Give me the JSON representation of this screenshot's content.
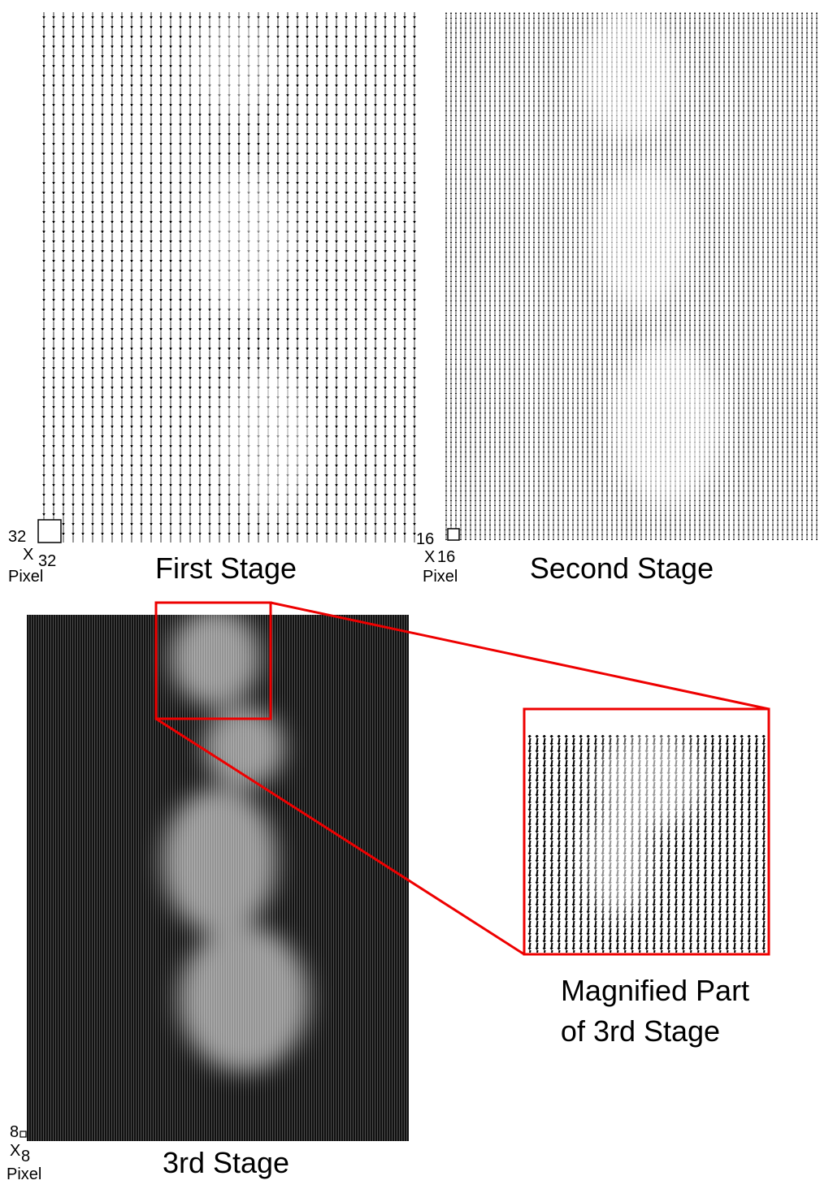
{
  "panels": [
    {
      "size": "32",
      "times": "X",
      "size2": "32",
      "unit": "Pixel",
      "title": "First Stage"
    },
    {
      "size": "16",
      "times": "X",
      "size2": "16",
      "unit": "Pixel",
      "title": "Second Stage"
    },
    {
      "size": "8",
      "times": "X",
      "size2": "8",
      "unit": "Pixel",
      "title": "3rd Stage"
    }
  ],
  "magnified": {
    "lines": [
      "Magnified Part",
      "of 3rd Stage"
    ]
  }
}
